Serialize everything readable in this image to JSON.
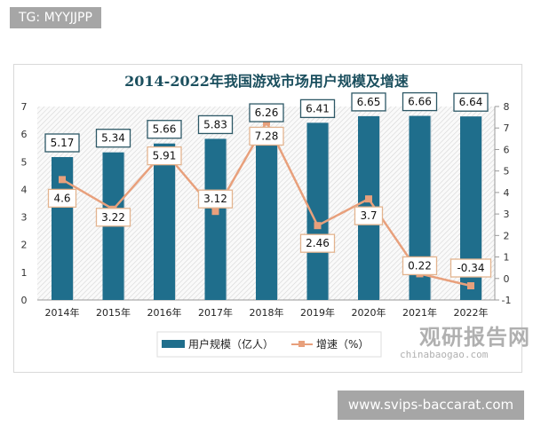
{
  "watermark_top": "TG: MYYJJPP",
  "watermark_bottom": "www.svips-baccarat.com",
  "logo": {
    "name": "观研报告网",
    "url": "chinabaogao.com"
  },
  "chart_data": {
    "type": "bar+line",
    "title": "2014-2022年我国游戏市场用户规模及增速",
    "categories": [
      "2014年",
      "2015年",
      "2016年",
      "2017年",
      "2018年",
      "2019年",
      "2020年",
      "2021年",
      "2022年"
    ],
    "series": [
      {
        "name": "用户规模（亿人）",
        "type": "bar",
        "axis": "left",
        "color": "#1f6e8c",
        "values": [
          5.17,
          5.34,
          5.66,
          5.83,
          6.26,
          6.41,
          6.65,
          6.66,
          6.64
        ]
      },
      {
        "name": "增速（%）",
        "type": "line",
        "axis": "right",
        "color": "#e8a07c",
        "values": [
          4.6,
          3.22,
          5.91,
          3.12,
          7.28,
          2.46,
          3.7,
          0.22,
          -0.34
        ]
      }
    ],
    "y_left": {
      "range": [
        0,
        7
      ],
      "ticks": [
        "0",
        "1",
        "2",
        "3",
        "4",
        "5",
        "6",
        "7"
      ]
    },
    "y_right": {
      "range": [
        -1,
        8
      ],
      "ticks": [
        "-1",
        "0",
        "1",
        "2",
        "3",
        "4",
        "5",
        "6",
        "7",
        "8"
      ]
    },
    "legend": "bottom",
    "data_labels": true
  }
}
